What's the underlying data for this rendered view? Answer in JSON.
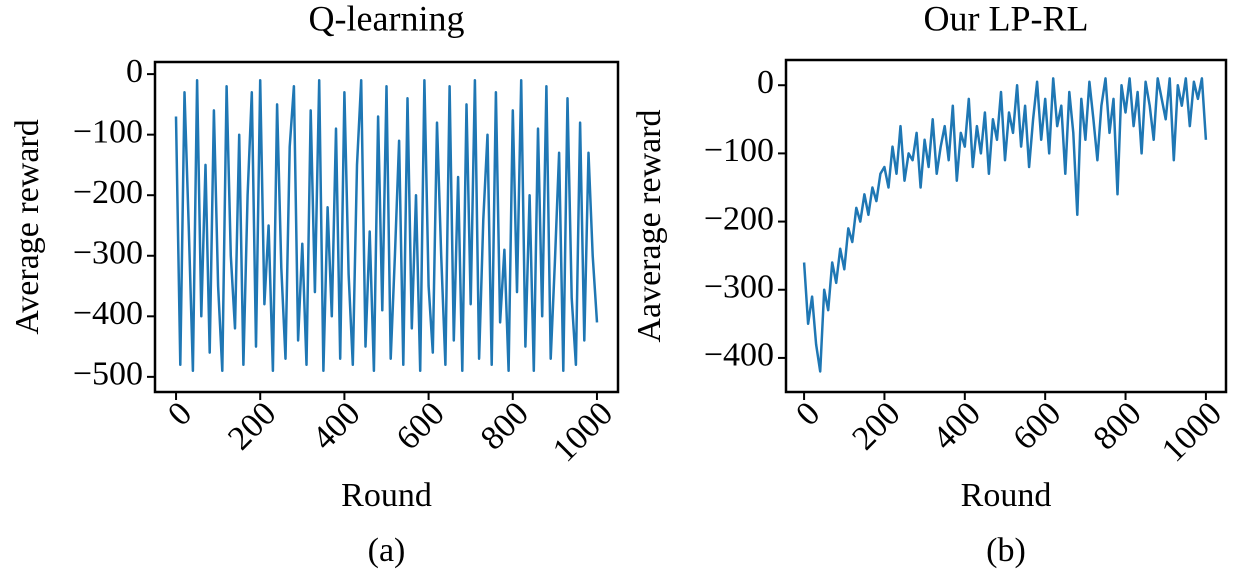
{
  "chart_data": [
    {
      "type": "line",
      "title": "Q-learning",
      "xlabel": "Round",
      "ylabel": "Average reward",
      "caption": "(a)",
      "xlim": [
        -50,
        1050
      ],
      "ylim": [
        -525,
        20
      ],
      "xticks": [
        0,
        200,
        400,
        600,
        800,
        1000
      ],
      "yticks": [
        0,
        {
          "value": -100,
          "label": "−100"
        },
        {
          "value": -200,
          "label": "−200"
        },
        {
          "value": -300,
          "label": "−300"
        },
        {
          "value": -400,
          "label": "−400"
        },
        {
          "value": -500,
          "label": "−500"
        }
      ],
      "x": [
        0,
        10,
        20,
        30,
        40,
        50,
        60,
        70,
        80,
        90,
        100,
        110,
        120,
        130,
        140,
        150,
        160,
        170,
        180,
        190,
        200,
        210,
        220,
        230,
        240,
        250,
        260,
        270,
        280,
        290,
        300,
        310,
        320,
        330,
        340,
        350,
        360,
        370,
        380,
        390,
        400,
        410,
        420,
        430,
        440,
        450,
        460,
        470,
        480,
        490,
        500,
        510,
        520,
        530,
        540,
        550,
        560,
        570,
        580,
        590,
        600,
        610,
        620,
        630,
        640,
        650,
        660,
        670,
        680,
        690,
        700,
        710,
        720,
        730,
        740,
        750,
        760,
        770,
        780,
        790,
        800,
        810,
        820,
        830,
        840,
        850,
        860,
        870,
        880,
        890,
        900,
        910,
        920,
        930,
        940,
        950,
        960,
        970,
        980,
        990,
        1000
      ],
      "series": [
        {
          "color": "#1f77b4",
          "values": [
            -70,
            -480,
            -30,
            -250,
            -490,
            -10,
            -400,
            -150,
            -460,
            -60,
            -350,
            -490,
            -20,
            -300,
            -420,
            -100,
            -480,
            -200,
            -30,
            -450,
            -10,
            -380,
            -250,
            -490,
            -50,
            -320,
            -470,
            -120,
            -20,
            -440,
            -280,
            -480,
            -60,
            -360,
            -10,
            -490,
            -220,
            -400,
            -90,
            -470,
            -30,
            -330,
            -480,
            -150,
            -10,
            -450,
            -260,
            -490,
            -70,
            -390,
            -20,
            -470,
            -300,
            -110,
            -480,
            -40,
            -420,
            -200,
            -490,
            -10,
            -350,
            -460,
            -80,
            -300,
            -480,
            -20,
            -440,
            -170,
            -490,
            -50,
            -380,
            -10,
            -470,
            -240,
            -100,
            -480,
            -30,
            -410,
            -290,
            -490,
            -60,
            -360,
            -10,
            -450,
            -200,
            -490,
            -90,
            -400,
            -20,
            -470,
            -310,
            -130,
            -490,
            -40,
            -370,
            -480,
            -80,
            -440,
            -130,
            -300,
            -410
          ]
        }
      ]
    },
    {
      "type": "line",
      "title": "Our LP-RL",
      "xlabel": "Round",
      "ylabel": "Aaverage reward",
      "caption": "(b)",
      "xlim": [
        -45,
        1050
      ],
      "ylim": [
        -450,
        37
      ],
      "xticks": [
        0,
        200,
        400,
        600,
        800,
        1000
      ],
      "yticks": [
        0,
        {
          "value": -100,
          "label": "−100"
        },
        {
          "value": -200,
          "label": "−200"
        },
        {
          "value": -300,
          "label": "−300"
        },
        {
          "value": -400,
          "label": "−400"
        }
      ],
      "x": [
        0,
        10,
        20,
        30,
        40,
        50,
        60,
        70,
        80,
        90,
        100,
        110,
        120,
        130,
        140,
        150,
        160,
        170,
        180,
        190,
        200,
        210,
        220,
        230,
        240,
        250,
        260,
        270,
        280,
        290,
        300,
        310,
        320,
        330,
        340,
        350,
        360,
        370,
        380,
        390,
        400,
        410,
        420,
        430,
        440,
        450,
        460,
        470,
        480,
        490,
        500,
        510,
        520,
        530,
        540,
        550,
        560,
        570,
        580,
        590,
        600,
        610,
        620,
        630,
        640,
        650,
        660,
        670,
        680,
        690,
        700,
        710,
        720,
        730,
        740,
        750,
        760,
        770,
        780,
        790,
        800,
        810,
        820,
        830,
        840,
        850,
        860,
        870,
        880,
        890,
        900,
        910,
        920,
        930,
        940,
        950,
        960,
        970,
        980,
        990,
        1000
      ],
      "series": [
        {
          "color": "#1f77b4",
          "values": [
            -260,
            -350,
            -310,
            -380,
            -420,
            -300,
            -330,
            -260,
            -290,
            -240,
            -270,
            -210,
            -230,
            -180,
            -200,
            -160,
            -190,
            -150,
            -170,
            -130,
            -120,
            -150,
            -90,
            -130,
            -60,
            -140,
            -100,
            -110,
            -70,
            -150,
            -80,
            -120,
            -50,
            -130,
            -90,
            -60,
            -110,
            -30,
            -140,
            -70,
            -90,
            -20,
            -120,
            -60,
            -100,
            -40,
            -130,
            -50,
            -80,
            -10,
            -110,
            -40,
            -70,
            0,
            -90,
            -30,
            -120,
            -50,
            5,
            -80,
            -20,
            -100,
            10,
            -60,
            -30,
            -130,
            -10,
            -70,
            -190,
            -20,
            -80,
            5,
            -50,
            -110,
            -30,
            10,
            -70,
            -20,
            -160,
            0,
            -40,
            10,
            -60,
            -10,
            -100,
            5,
            -30,
            -80,
            10,
            -20,
            -50,
            10,
            -110,
            0,
            -30,
            10,
            -60,
            5,
            -20,
            10,
            -80
          ]
        }
      ]
    }
  ]
}
